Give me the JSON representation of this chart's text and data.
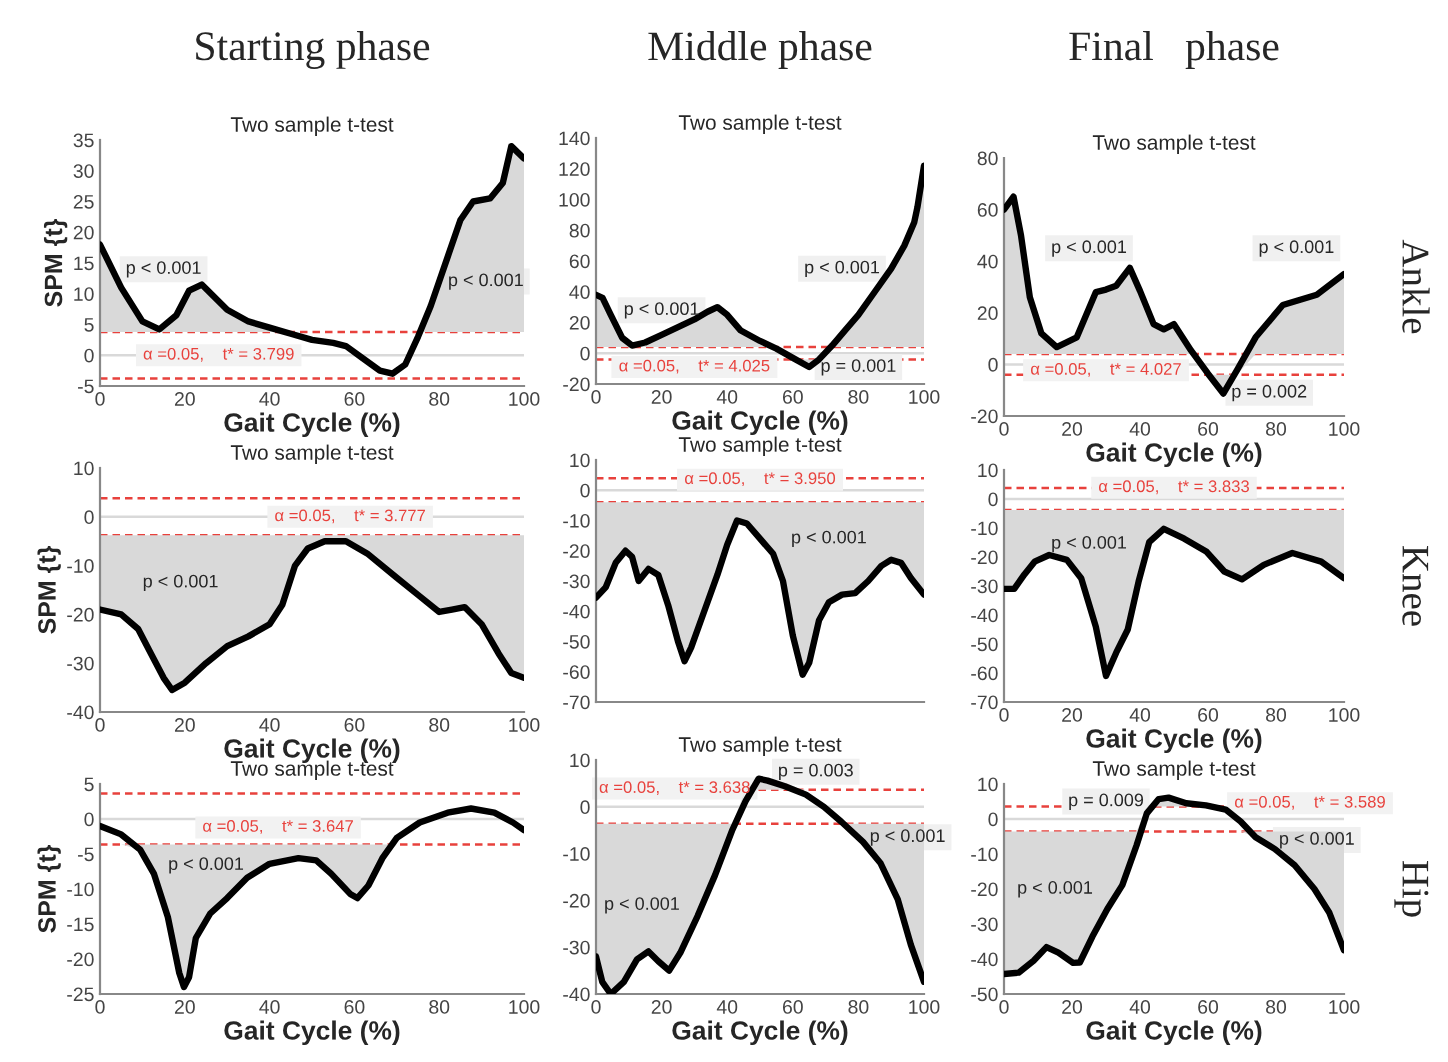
{
  "chart_data": [
    {
      "type": "line",
      "title": "Two sample t-test",
      "subtitle": "Starting phase",
      "xlabel": "Gait Cycle (%)",
      "ylabel": "SPM {t}",
      "xlim": [
        0,
        100
      ],
      "xticks": [
        0,
        20,
        40,
        60,
        80,
        100
      ],
      "ylim": [
        -5,
        35
      ],
      "yticks": [
        -5,
        0,
        5,
        10,
        15,
        20,
        25,
        30,
        35
      ],
      "series": [
        {
          "color": "#000000",
          "x": [
            0,
            5,
            10,
            14,
            18,
            21,
            24,
            30,
            35,
            40,
            45,
            50,
            55,
            58,
            62,
            66,
            69,
            72,
            75,
            78,
            82,
            85,
            88,
            92,
            95,
            97,
            100
          ],
          "values": [
            18,
            11,
            5.5,
            4.2,
            6.5,
            10.5,
            11.5,
            7.4,
            5.5,
            4.5,
            3.5,
            2.5,
            2,
            1.5,
            -0.5,
            -2.5,
            -3,
            -1.5,
            3,
            8,
            16,
            22,
            25,
            25.5,
            28,
            34,
            32
          ],
          "lower": [
            3.799,
            3.799,
            3.799,
            3.799,
            3.799,
            3.799,
            3.799,
            3.799,
            3.799,
            3.799,
            3.799,
            3.799,
            3.799,
            3.799,
            -3.799,
            -3.799,
            -3.799,
            -3.799,
            3.799,
            3.799,
            3.799,
            3.799,
            3.799,
            3.799,
            3.799,
            3.799,
            3.799
          ],
          "upper": [
            18,
            11,
            5.5,
            4.2,
            6.5,
            10.5,
            11.5,
            7.4,
            5.5,
            4.5,
            3.799,
            3.799,
            3.799,
            3.799,
            -3.799,
            -3.799,
            -3.799,
            -3.799,
            3.799,
            8,
            16,
            22,
            25,
            25.5,
            28,
            34,
            32
          ]
        }
      ],
      "ref_lines": [
        {
          "axis": "y",
          "value": 0,
          "color": "#d9d9d9",
          "line_style": "solid"
        },
        {
          "axis": "y",
          "value": 3.799,
          "color": "#e8413c",
          "line_style": "dashed",
          "label": "α =0.05,    t* = 3.799"
        },
        {
          "axis": "y",
          "value": -3.799,
          "color": "#e8413c",
          "line_style": "dashed"
        }
      ],
      "annotations": [
        "p < 0.001",
        "p < 0.001"
      ]
    },
    {
      "type": "line",
      "title": "Two sample t-test",
      "subtitle": "Middle phase",
      "xlabel": "Gait Cycle (%)",
      "xlim": [
        0,
        100
      ],
      "xticks": [
        0,
        20,
        40,
        60,
        80,
        100
      ],
      "ylim": [
        -20,
        140
      ],
      "yticks": [
        -20,
        0,
        20,
        40,
        60,
        80,
        100,
        120,
        140
      ],
      "series": [
        {
          "color": "#000000",
          "x": [
            0,
            2,
            4.5,
            8,
            11,
            15,
            20,
            25,
            30,
            34,
            37,
            40,
            44,
            50,
            55,
            60,
            65,
            68,
            72,
            76,
            80,
            85,
            90,
            94,
            97,
            98,
            100
          ],
          "values": [
            38,
            36,
            25,
            10,
            5,
            7,
            12,
            17,
            22,
            27,
            30,
            25,
            15,
            8,
            3,
            -3,
            -9,
            -4,
            5,
            15,
            25,
            40,
            55,
            70,
            85,
            95,
            122
          ],
          "lower": [
            4.025,
            4.025,
            4.025,
            4.025,
            4.025,
            4.025,
            4.025,
            4.025,
            4.025,
            4.025,
            4.025,
            4.025,
            4.025,
            4.025,
            4.025,
            -4.025,
            -9,
            -4.025,
            4.025,
            4.025,
            4.025,
            4.025,
            4.025,
            4.025,
            4.025,
            4.025,
            4.025
          ],
          "upper": [
            38,
            36,
            25,
            10,
            5,
            7,
            12,
            17,
            22,
            27,
            30,
            25,
            15,
            8,
            4.025,
            -4.025,
            -4.025,
            -4.025,
            5,
            15,
            25,
            40,
            55,
            70,
            85,
            95,
            122
          ]
        }
      ],
      "ref_lines": [
        {
          "axis": "y",
          "value": 0,
          "color": "#d9d9d9",
          "line_style": "solid"
        },
        {
          "axis": "y",
          "value": 4.025,
          "color": "#e8413c",
          "line_style": "dashed",
          "label": "α =0.05,    t* = 4.025"
        },
        {
          "axis": "y",
          "value": -4.025,
          "color": "#e8413c",
          "line_style": "dashed"
        }
      ],
      "annotations": [
        "p < 0.001",
        "p < 0.001",
        "p = 0.001"
      ]
    },
    {
      "type": "line",
      "title": "Two sample t-test",
      "subtitle": "Final   phase",
      "y2label": "Ankle",
      "xlabel": "Gait Cycle (%)",
      "xlim": [
        0,
        100
      ],
      "xticks": [
        0,
        20,
        40,
        60,
        80,
        100
      ],
      "ylim": [
        -20,
        80
      ],
      "yticks": [
        -20,
        0,
        20,
        40,
        60,
        80
      ],
      "series": [
        {
          "color": "#000000",
          "x": [
            0,
            2.8,
            5,
            7.6,
            11,
            15.5,
            21.4,
            27,
            30,
            33,
            37,
            40,
            44,
            47,
            50,
            55,
            60,
            64.5,
            68.5,
            74,
            82,
            92,
            100
          ],
          "values": [
            60,
            65,
            50,
            26,
            12,
            6.7,
            10.5,
            28,
            29,
            30.5,
            37.4,
            28.5,
            15.6,
            13.6,
            15.6,
            5.4,
            -3.6,
            -11.3,
            -2.3,
            10.5,
            23,
            27,
            35
          ],
          "lower": [
            4.027,
            4.027,
            4.027,
            4.027,
            4.027,
            4.027,
            4.027,
            4.027,
            4.027,
            4.027,
            4.027,
            4.027,
            4.027,
            4.027,
            4.027,
            4.027,
            -4.027,
            -11.3,
            -4.027,
            4.027,
            4.027,
            4.027,
            4.027
          ],
          "upper": [
            60,
            65,
            50,
            26,
            12,
            6.7,
            10.5,
            28,
            29,
            30.5,
            37.4,
            28.5,
            15.6,
            13.6,
            15.6,
            5.4,
            -4.027,
            -4.027,
            -4.027,
            10.5,
            23,
            27,
            35
          ]
        }
      ],
      "ref_lines": [
        {
          "axis": "y",
          "value": 0,
          "color": "#d9d9d9",
          "line_style": "solid"
        },
        {
          "axis": "y",
          "value": 4.027,
          "color": "#e8413c",
          "line_style": "dashed",
          "label": "α =0.05,    t* = 4.027"
        },
        {
          "axis": "y",
          "value": -4.027,
          "color": "#e8413c",
          "line_style": "dashed"
        }
      ],
      "annotations": [
        "p < 0.001",
        "p < 0.001",
        "p = 0.002"
      ]
    },
    {
      "type": "line",
      "title": "Two sample t-test",
      "xlabel": "Gait Cycle (%)",
      "ylabel": "SPM {t}",
      "xlim": [
        0,
        100
      ],
      "xticks": [
        0,
        20,
        40,
        60,
        80,
        100
      ],
      "ylim": [
        -40,
        10
      ],
      "yticks": [
        -40,
        -30,
        -20,
        -10,
        0,
        10
      ],
      "series": [
        {
          "color": "#000000",
          "x": [
            0,
            5,
            9,
            12,
            15,
            17,
            20,
            25,
            30,
            35,
            40,
            43,
            46,
            49,
            53,
            58,
            63,
            70,
            75,
            80,
            83,
            86,
            90,
            94,
            97,
            100
          ],
          "values": [
            -19,
            -20,
            -23,
            -28,
            -33,
            -35.5,
            -34,
            -30,
            -26.5,
            -24.5,
            -22,
            -18,
            -10,
            -6.5,
            -5,
            -5,
            -7.5,
            -12.5,
            -16,
            -19.5,
            -19,
            -18.5,
            -22,
            -28,
            -32,
            -33
          ],
          "lower": [
            -19,
            -20,
            -23,
            -28,
            -33,
            -35.5,
            -34,
            -30,
            -26.5,
            -24.5,
            -22,
            -18,
            -10,
            -6.5,
            -5,
            -5,
            -7.5,
            -12.5,
            -16,
            -19.5,
            -19,
            -18.5,
            -22,
            -28,
            -32,
            -33
          ],
          "upper": [
            -3.777,
            -3.777,
            -3.777,
            -3.777,
            -3.777,
            -3.777,
            -3.777,
            -3.777,
            -3.777,
            -3.777,
            -3.777,
            -3.777,
            -3.777,
            -3.777,
            -3.777,
            -3.777,
            -3.777,
            -3.777,
            -3.777,
            -3.777,
            -3.777,
            -3.777,
            -3.777,
            -3.777,
            -3.777,
            -3.777
          ]
        }
      ],
      "ref_lines": [
        {
          "axis": "y",
          "value": 0,
          "color": "#d9d9d9",
          "line_style": "solid"
        },
        {
          "axis": "y",
          "value": 3.777,
          "color": "#e8413c",
          "line_style": "dashed",
          "label": "α =0.05,    t* = 3.777"
        },
        {
          "axis": "y",
          "value": -3.777,
          "color": "#e8413c",
          "line_style": "dashed"
        }
      ],
      "annotations": [
        "p < 0.001"
      ]
    },
    {
      "type": "line",
      "title": "Two sample t-test",
      "tick_labels": "y",
      "xlim": [
        0,
        100
      ],
      "xticks": [
        0,
        20,
        40,
        60,
        80,
        100
      ],
      "ylim": [
        -70,
        10
      ],
      "yticks": [
        -70,
        -60,
        -50,
        -40,
        -30,
        -20,
        -10,
        0,
        10
      ],
      "series": [
        {
          "color": "#000000",
          "x": [
            0,
            3,
            6,
            9,
            11,
            13,
            16,
            19,
            22,
            25,
            27,
            29,
            33,
            37,
            40,
            43,
            46,
            50,
            54,
            57,
            60,
            63,
            65,
            68,
            71,
            75,
            79,
            83,
            87,
            90,
            93,
            96,
            100
          ],
          "values": [
            -35.5,
            -32,
            -24,
            -20,
            -22,
            -30,
            -26,
            -28,
            -38,
            -50,
            -56.5,
            -52,
            -40,
            -28,
            -18,
            -10,
            -11,
            -16,
            -21,
            -30,
            -48,
            -61,
            -57,
            -43,
            -37,
            -34.5,
            -34,
            -30,
            -25,
            -23,
            -24,
            -29,
            -34.5
          ],
          "lower": [
            -35.5,
            -32,
            -24,
            -20,
            -22,
            -30,
            -26,
            -28,
            -38,
            -50,
            -56.5,
            -52,
            -40,
            -28,
            -18,
            -10,
            -11,
            -16,
            -21,
            -30,
            -48,
            -61,
            -57,
            -43,
            -37,
            -34.5,
            -34,
            -30,
            -25,
            -23,
            -24,
            -29,
            -34.5
          ],
          "upper": [
            -3.95,
            -3.95,
            -3.95,
            -3.95,
            -3.95,
            -3.95,
            -3.95,
            -3.95,
            -3.95,
            -3.95,
            -3.95,
            -3.95,
            -3.95,
            -3.95,
            -3.95,
            -3.95,
            -3.95,
            -3.95,
            -3.95,
            -3.95,
            -3.95,
            -3.95,
            -3.95,
            -3.95,
            -3.95,
            -3.95,
            -3.95,
            -3.95,
            -3.95,
            -3.95,
            -3.95,
            -3.95,
            -3.95
          ]
        }
      ],
      "ref_lines": [
        {
          "axis": "y",
          "value": 0,
          "color": "#d9d9d9",
          "line_style": "solid"
        },
        {
          "axis": "y",
          "value": 3.95,
          "color": "#e8413c",
          "line_style": "dashed",
          "label": "α =0.05,    t* = 3.950"
        },
        {
          "axis": "y",
          "value": -3.95,
          "color": "#e8413c",
          "line_style": "dashed"
        }
      ],
      "annotations": [
        "p < 0.001"
      ]
    },
    {
      "type": "line",
      "y2label": "Knee",
      "xlabel": "Gait Cycle (%)",
      "xlim": [
        0,
        100
      ],
      "xticks": [
        0,
        20,
        40,
        60,
        80,
        100
      ],
      "ylim": [
        -70,
        10
      ],
      "yticks": [
        -70,
        -60,
        -50,
        -40,
        -30,
        -20,
        -10,
        0,
        10
      ],
      "series": [
        {
          "color": "#000000",
          "x": [
            0,
            3,
            6,
            9,
            13.3,
            18.5,
            22.7,
            27,
            30,
            33,
            36.4,
            39.6,
            42.7,
            47,
            53,
            59.6,
            64.8,
            70,
            76.4,
            84.8,
            93.3,
            100
          ],
          "values": [
            -31,
            -31,
            -26,
            -21.6,
            -19.3,
            -21,
            -27.3,
            -44,
            -61,
            -53,
            -45,
            -28.4,
            -14.9,
            -10.3,
            -13.7,
            -18.2,
            -25,
            -27.7,
            -22.7,
            -18.6,
            -21.6,
            -27.3
          ],
          "lower": [
            -31,
            -31,
            -26,
            -21.6,
            -19.3,
            -21,
            -27.3,
            -44,
            -61,
            -53,
            -45,
            -28.4,
            -14.9,
            -10.3,
            -13.7,
            -18.2,
            -25,
            -27.7,
            -22.7,
            -18.6,
            -21.6,
            -27.3
          ],
          "upper": [
            -3.833,
            -3.833,
            -3.833,
            -3.833,
            -3.833,
            -3.833,
            -3.833,
            -3.833,
            -3.833,
            -3.833,
            -3.833,
            -3.833,
            -3.833,
            -3.833,
            -3.833,
            -3.833,
            -3.833,
            -3.833,
            -3.833,
            -3.833,
            -3.833,
            -3.833
          ]
        }
      ],
      "ref_lines": [
        {
          "axis": "y",
          "value": 0,
          "color": "#d9d9d9",
          "line_style": "solid"
        },
        {
          "axis": "y",
          "value": 3.833,
          "color": "#e8413c",
          "line_style": "dashed",
          "label": "α =0.05,    t* = 3.833"
        },
        {
          "axis": "y",
          "value": -3.833,
          "color": "#e8413c",
          "line_style": "dashed"
        }
      ],
      "annotations": [
        "p < 0.001"
      ]
    },
    {
      "type": "line",
      "title": "Two sample t-test",
      "xlabel": "Gait Cycle (%)",
      "ylabel": "SPM {t}",
      "xlim": [
        0,
        100
      ],
      "xticks": [
        0,
        20,
        40,
        60,
        80,
        100
      ],
      "ylim": [
        -25,
        5
      ],
      "yticks": [
        -25,
        -20,
        -15,
        -10,
        -5,
        0,
        5
      ],
      "series": [
        {
          "color": "#000000",
          "x": [
            0,
            5,
            9.5,
            12.7,
            16,
            18.7,
            19.8,
            21,
            22.6,
            26,
            30,
            34.7,
            40,
            46.8,
            51,
            54.5,
            59,
            60.7,
            63.3,
            66.6,
            70,
            75.4,
            82,
            87.5,
            93,
            97.4,
            100
          ],
          "values": [
            -1,
            -2.2,
            -4.4,
            -7.8,
            -14,
            -22,
            -24,
            -22.6,
            -17,
            -13.5,
            -11.3,
            -8.4,
            -6.4,
            -5.6,
            -5.9,
            -7.8,
            -10.7,
            -11.3,
            -9.5,
            -5.6,
            -2.7,
            -0.5,
            0.9,
            1.5,
            0.9,
            -0.5,
            -1.6
          ],
          "lower": [
            -3.647,
            -3.647,
            -4.4,
            -7.8,
            -14,
            -22,
            -24,
            -22.6,
            -17,
            -13.5,
            -11.3,
            -8.4,
            -6.4,
            -5.6,
            -5.9,
            -7.8,
            -10.7,
            -11.3,
            -9.5,
            -5.6,
            -3.647,
            -3.647,
            3.647,
            3.647,
            3.647,
            -3.647,
            -3.647
          ],
          "upper": [
            -3.647,
            -3.647,
            -3.647,
            -3.647,
            -3.647,
            -3.647,
            -3.647,
            -3.647,
            -3.647,
            -3.647,
            -3.647,
            -3.647,
            -3.647,
            -3.647,
            -3.647,
            -3.647,
            -3.647,
            -3.647,
            -3.647,
            -3.647,
            -3.647,
            -3.647,
            3.647,
            3.647,
            3.647,
            -3.647,
            -3.647
          ]
        }
      ],
      "ref_lines": [
        {
          "axis": "y",
          "value": 0,
          "color": "#d9d9d9",
          "line_style": "solid"
        },
        {
          "axis": "y",
          "value": 3.647,
          "color": "#e8413c",
          "line_style": "dashed",
          "label": "α =0.05,    t* = 3.647"
        },
        {
          "axis": "y",
          "value": -3.647,
          "color": "#e8413c",
          "line_style": "dashed"
        }
      ],
      "annotations": [
        "p < 0.001"
      ]
    },
    {
      "type": "line",
      "title": "Two sample t-test",
      "xlabel": "Gait Cycle (%)",
      "xlim": [
        0,
        100
      ],
      "xticks": [
        0,
        20,
        40,
        60,
        80,
        100
      ],
      "ylim": [
        -40,
        10
      ],
      "yticks": [
        -40,
        -30,
        -20,
        -10,
        0,
        10
      ],
      "series": [
        {
          "color": "#000000",
          "x": [
            0,
            1.9,
            4.5,
            8.5,
            12.5,
            16,
            19,
            22.3,
            25.7,
            31,
            36.3,
            41.6,
            45.6,
            49.6,
            52.3,
            57.6,
            64,
            69.5,
            74.8,
            81.4,
            86.7,
            92,
            96,
            100
          ],
          "values": [
            -32,
            -37.4,
            -40,
            -37.4,
            -32.6,
            -30.9,
            -33,
            -35,
            -31.2,
            -23.3,
            -14.6,
            -4.9,
            1.2,
            6,
            5.6,
            4.4,
            2.6,
            0,
            -3.2,
            -7.5,
            -12,
            -19.8,
            -29.5,
            -37.4
          ],
          "lower": [
            -32,
            -37.4,
            -40,
            -37.4,
            -32.6,
            -30.9,
            -33,
            -35,
            -31.2,
            -23.3,
            -14.6,
            -4.9,
            3.638,
            3.638,
            3.638,
            3.638,
            3.638,
            3.638,
            -3.638,
            -7.5,
            -12,
            -19.8,
            -29.5,
            -37.4
          ],
          "upper": [
            -3.638,
            -3.638,
            -3.638,
            -3.638,
            -3.638,
            -3.638,
            -3.638,
            -3.638,
            -3.638,
            -3.638,
            -3.638,
            -3.638,
            3.638,
            6,
            5.6,
            4.4,
            3.638,
            3.638,
            -3.638,
            -3.638,
            -3.638,
            -3.638,
            -3.638,
            -3.638
          ]
        }
      ],
      "ref_lines": [
        {
          "axis": "y",
          "value": 0,
          "color": "#d9d9d9",
          "line_style": "solid"
        },
        {
          "axis": "y",
          "value": 3.638,
          "color": "#e8413c",
          "line_style": "dashed",
          "label": "α =0.05,    t* = 3.638"
        },
        {
          "axis": "y",
          "value": -3.638,
          "color": "#e8413c",
          "line_style": "dashed"
        }
      ],
      "annotations": [
        "p < 0.001",
        "p = 0.003",
        "p < 0.001"
      ]
    },
    {
      "type": "line",
      "title": "Two sample t-test",
      "y2label": "Hip",
      "xlabel": "Gait Cycle (%)",
      "xlim": [
        0,
        100
      ],
      "xticks": [
        0,
        20,
        40,
        60,
        80,
        100
      ],
      "ylim": [
        -50,
        10
      ],
      "yticks": [
        -50,
        -40,
        -30,
        -20,
        -10,
        0,
        10
      ],
      "series": [
        {
          "color": "#000000",
          "x": [
            0,
            4.3,
            8.7,
            12.5,
            16,
            20.3,
            22.3,
            26,
            30.4,
            34.8,
            39,
            42,
            45.5,
            48.4,
            53.6,
            59.4,
            65.2,
            69.6,
            74,
            79.7,
            85.5,
            91.3,
            95.7,
            100
          ],
          "values": [
            -44.3,
            -43.9,
            -40.5,
            -36.6,
            -38.2,
            -41.1,
            -41,
            -33.6,
            -25.7,
            -18.9,
            -7.5,
            1.6,
            5.7,
            6.1,
            4.5,
            3.9,
            2.7,
            -0.7,
            -5.2,
            -8.6,
            -13.2,
            -20,
            -26.8,
            -37.5
          ],
          "lower": [
            -44.3,
            -43.9,
            -40.5,
            -36.6,
            -38.2,
            -41.1,
            -41,
            -33.6,
            -25.7,
            -18.9,
            -7.5,
            3.589,
            3.589,
            3.589,
            3.589,
            3.589,
            3.589,
            -3.589,
            -5.2,
            -8.6,
            -13.2,
            -20,
            -26.8,
            -37.5
          ],
          "upper": [
            -3.589,
            -3.589,
            -3.589,
            -3.589,
            -3.589,
            -3.589,
            -3.589,
            -3.589,
            -3.589,
            -3.589,
            -3.589,
            3.589,
            5.7,
            6.1,
            4.5,
            3.9,
            3.589,
            -3.589,
            -3.589,
            -3.589,
            -3.589,
            -3.589,
            -3.589,
            -3.589
          ]
        }
      ],
      "ref_lines": [
        {
          "axis": "y",
          "value": 0,
          "color": "#d9d9d9",
          "line_style": "solid"
        },
        {
          "axis": "y",
          "value": 3.589,
          "color": "#e8413c",
          "line_style": "dashed",
          "label": "α =0.05,    t* = 3.589"
        },
        {
          "axis": "y",
          "value": -3.589,
          "color": "#e8413c",
          "line_style": "dashed"
        }
      ],
      "annotations": [
        "p < 0.001",
        "p = 0.009",
        "p < 0.001"
      ]
    }
  ]
}
